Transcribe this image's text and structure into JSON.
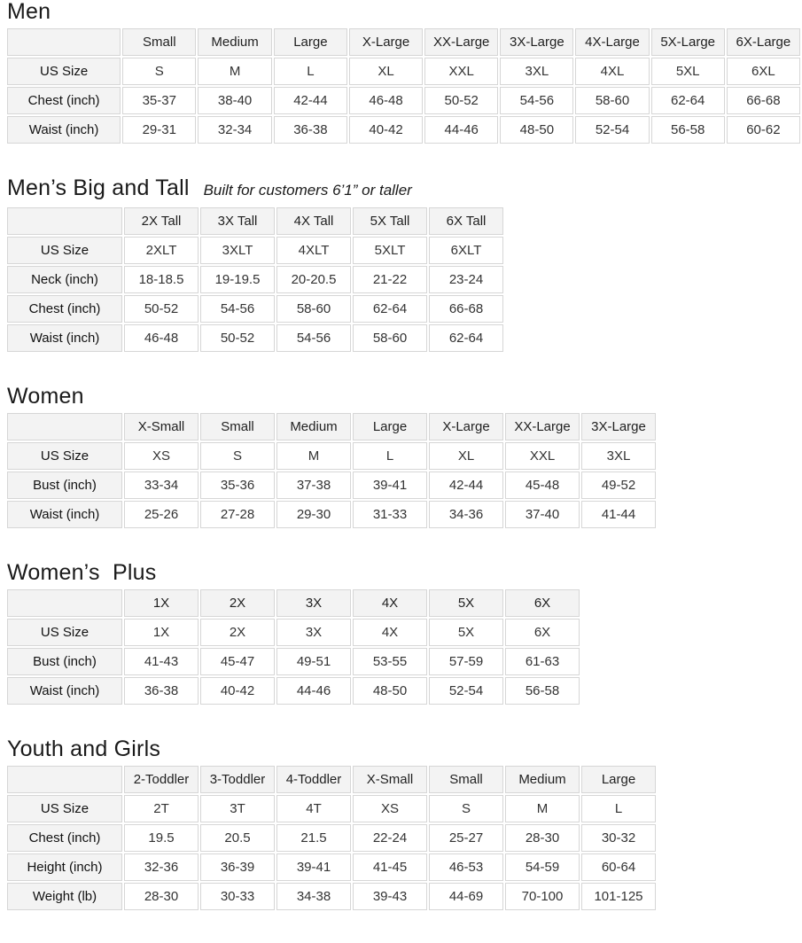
{
  "theme": {
    "page_background": "#ffffff",
    "header_cell_background": "#f3f3f3",
    "cell_border_color": "#d6d6d6",
    "title_text_color": "#1a1a1a",
    "value_text_color": "#333333"
  },
  "sections": [
    {
      "id": "men",
      "title": "Men",
      "subtitle": "",
      "columns": [
        "Small",
        "Medium",
        "Large",
        "X-Large",
        "XX-Large",
        "3X-Large",
        "4X-Large",
        "5X-Large",
        "6X-Large"
      ],
      "rows": [
        {
          "label": "US Size",
          "values": [
            "S",
            "M",
            "L",
            "XL",
            "XXL",
            "3XL",
            "4XL",
            "5XL",
            "6XL"
          ]
        },
        {
          "label": "Chest (inch)",
          "values": [
            "35-37",
            "38-40",
            "42-44",
            "46-48",
            "50-52",
            "54-56",
            "58-60",
            "62-64",
            "66-68"
          ]
        },
        {
          "label": "Waist (inch)",
          "values": [
            "29-31",
            "32-34",
            "36-38",
            "40-42",
            "44-46",
            "48-50",
            "52-54",
            "56-58",
            "60-62"
          ]
        }
      ]
    },
    {
      "id": "mens-big-and-tall",
      "title": "Men’s Big and Tall",
      "subtitle": "Built for customers 6’1” or taller",
      "columns": [
        "2X Tall",
        "3X Tall",
        "4X Tall",
        "5X Tall",
        "6X Tall"
      ],
      "rows": [
        {
          "label": "US Size",
          "values": [
            "2XLT",
            "3XLT",
            "4XLT",
            "5XLT",
            "6XLT"
          ]
        },
        {
          "label": "Neck (inch)",
          "values": [
            "18-18.5",
            "19-19.5",
            "20-20.5",
            "21-22",
            "23-24"
          ]
        },
        {
          "label": "Chest (inch)",
          "values": [
            "50-52",
            "54-56",
            "58-60",
            "62-64",
            "66-68"
          ]
        },
        {
          "label": "Waist (inch)",
          "values": [
            "46-48",
            "50-52",
            "54-56",
            "58-60",
            "62-64"
          ]
        }
      ]
    },
    {
      "id": "women",
      "title": "Women",
      "subtitle": "",
      "columns": [
        "X-Small",
        "Small",
        "Medium",
        "Large",
        "X-Large",
        "XX-Large",
        "3X-Large"
      ],
      "rows": [
        {
          "label": "US Size",
          "values": [
            "XS",
            "S",
            "M",
            "L",
            "XL",
            "XXL",
            "3XL"
          ]
        },
        {
          "label": "Bust (inch)",
          "values": [
            "33-34",
            "35-36",
            "37-38",
            "39-41",
            "42-44",
            "45-48",
            "49-52"
          ]
        },
        {
          "label": "Waist (inch)",
          "values": [
            "25-26",
            "27-28",
            "29-30",
            "31-33",
            "34-36",
            "37-40",
            "41-44"
          ]
        }
      ]
    },
    {
      "id": "womens-plus",
      "title": "Women’s  Plus",
      "subtitle": "",
      "columns": [
        "1X",
        "2X",
        "3X",
        "4X",
        "5X",
        "6X"
      ],
      "rows": [
        {
          "label": "US Size",
          "values": [
            "1X",
            "2X",
            "3X",
            "4X",
            "5X",
            "6X"
          ]
        },
        {
          "label": "Bust (inch)",
          "values": [
            "41-43",
            "45-47",
            "49-51",
            "53-55",
            "57-59",
            "61-63"
          ]
        },
        {
          "label": "Waist (inch)",
          "values": [
            "36-38",
            "40-42",
            "44-46",
            "48-50",
            "52-54",
            "56-58"
          ]
        }
      ]
    },
    {
      "id": "youth-and-girls",
      "title": "Youth and Girls",
      "subtitle": "",
      "columns": [
        "2-Toddler",
        "3-Toddler",
        "4-Toddler",
        "X-Small",
        "Small",
        "Medium",
        "Large"
      ],
      "rows": [
        {
          "label": "US Size",
          "values": [
            "2T",
            "3T",
            "4T",
            "XS",
            "S",
            "M",
            "L"
          ]
        },
        {
          "label": "Chest (inch)",
          "values": [
            "19.5",
            "20.5",
            "21.5",
            "22-24",
            "25-27",
            "28-30",
            "30-32"
          ]
        },
        {
          "label": "Height (inch)",
          "values": [
            "32-36",
            "36-39",
            "39-41",
            "41-45",
            "46-53",
            "54-59",
            "60-64"
          ]
        },
        {
          "label": "Weight (lb)",
          "values": [
            "28-30",
            "30-33",
            "34-38",
            "39-43",
            "44-69",
            "70-100",
            "101-125"
          ]
        }
      ]
    }
  ]
}
